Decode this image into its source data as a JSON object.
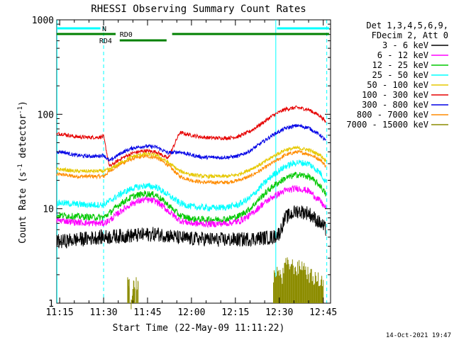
{
  "chart_data": {
    "type": "line",
    "title": "RHESSI Observing Summary Count Rates",
    "xlabel": "Start Time (22-May-09 11:11:22)",
    "ylabel_prefix": "Count Rate (s",
    "ylabel_sup1": "-1",
    "ylabel_mid": " detector",
    "ylabel_sup2": "-1",
    "ylabel_suffix": ")",
    "yscale": "log",
    "ylim": [
      1,
      1000
    ],
    "xlim_min": [
      674.0,
      767.5
    ],
    "x_ticks": [
      {
        "t": 675,
        "label": "11:15"
      },
      {
        "t": 690,
        "label": "11:30"
      },
      {
        "t": 705,
        "label": "11:45"
      },
      {
        "t": 720,
        "label": "12:00"
      },
      {
        "t": 735,
        "label": "12:15"
      },
      {
        "t": 750,
        "label": "12:30"
      },
      {
        "t": 765,
        "label": "12:45"
      }
    ],
    "y_ticks": [
      {
        "v": 1,
        "label": "1"
      },
      {
        "v": 10,
        "label": "10"
      },
      {
        "v": 100,
        "label": "100"
      },
      {
        "v": 1000,
        "label": "1000"
      }
    ],
    "legend_header": [
      "Det 1,3,4,5,6,9,",
      "FDecim 2, Att 0"
    ],
    "series": [
      {
        "name": "3 - 6 keV",
        "color": "#000000",
        "x": [
          674,
          676,
          680,
          684,
          688,
          690,
          694,
          700,
          704,
          708,
          712,
          716,
          720,
          724,
          728,
          732,
          736,
          740,
          744,
          748,
          750,
          752,
          756,
          760,
          764,
          766
        ],
        "y": [
          4.5,
          4.5,
          4.7,
          4.8,
          5.0,
          5.0,
          5.1,
          5.2,
          5.3,
          5.4,
          5.2,
          4.9,
          4.8,
          4.8,
          4.7,
          4.7,
          4.7,
          4.8,
          4.9,
          5.0,
          5.5,
          8.0,
          9.5,
          9.0,
          7.0,
          6.0
        ]
      },
      {
        "name": "6 - 12 keV",
        "color": "#ff00ff",
        "x": [
          674,
          676,
          680,
          684,
          688,
          690,
          692,
          696,
          700,
          704,
          708,
          712,
          716,
          720,
          724,
          728,
          732,
          736,
          740,
          744,
          748,
          752,
          756,
          760,
          764,
          766
        ],
        "y": [
          7.5,
          7.5,
          7.2,
          7.1,
          7.0,
          7.0,
          7.5,
          9.5,
          11.5,
          12.5,
          12.0,
          9.5,
          7.5,
          7.0,
          6.9,
          6.9,
          7.0,
          7.3,
          8.5,
          11.0,
          13.5,
          15.5,
          16.5,
          15.5,
          12.0,
          10.0
        ]
      },
      {
        "name": "12 - 25 keV",
        "color": "#00c800",
        "x": [
          674,
          676,
          680,
          684,
          688,
          690,
          692,
          696,
          700,
          704,
          708,
          712,
          716,
          720,
          724,
          728,
          732,
          736,
          740,
          744,
          748,
          752,
          756,
          760,
          764,
          766
        ],
        "y": [
          8.5,
          8.5,
          8.3,
          8.2,
          8.1,
          8.1,
          9.0,
          11.5,
          13.5,
          14.5,
          14.0,
          11.0,
          8.5,
          7.8,
          7.7,
          7.7,
          7.8,
          8.3,
          10.0,
          13.5,
          17.5,
          21.0,
          23.0,
          22.0,
          17.5,
          14.0
        ]
      },
      {
        "name": "25 - 50 keV",
        "color": "#00ffff",
        "x": [
          674,
          676,
          680,
          684,
          688,
          690,
          692,
          696,
          700,
          704,
          708,
          712,
          716,
          720,
          724,
          728,
          732,
          736,
          740,
          744,
          748,
          752,
          756,
          760,
          764,
          766
        ],
        "y": [
          11.5,
          11.5,
          11.2,
          11.0,
          11.0,
          11.0,
          12.0,
          14.5,
          16.5,
          17.5,
          17.0,
          14.0,
          11.5,
          10.5,
          10.3,
          10.2,
          10.4,
          11.0,
          13.0,
          17.5,
          23.0,
          28.0,
          31.0,
          30.0,
          24.0,
          19.0
        ]
      },
      {
        "name": "50 - 100 keV",
        "color": "#e6c800",
        "x": [
          674,
          676,
          680,
          684,
          688,
          690,
          692,
          696,
          700,
          704,
          708,
          712,
          716,
          720,
          724,
          728,
          732,
          736,
          740,
          744,
          748,
          752,
          756,
          760,
          764,
          766
        ],
        "y": [
          26,
          26,
          25,
          25,
          25,
          25,
          26,
          31,
          36,
          38,
          37,
          31,
          25,
          23,
          22,
          22,
          22,
          23,
          26,
          30,
          36,
          42,
          44,
          42,
          37,
          32
        ]
      },
      {
        "name": "100 - 300 keV",
        "color": "#e60000",
        "x": [
          674,
          676,
          680,
          684,
          688,
          690,
          692,
          696,
          700,
          704,
          708,
          712,
          716,
          720,
          724,
          728,
          732,
          736,
          740,
          744,
          748,
          752,
          756,
          760,
          764,
          766
        ],
        "y": [
          62,
          62,
          58,
          57,
          57,
          58,
          28,
          34,
          39,
          41,
          40,
          34,
          64,
          60,
          57,
          56,
          56,
          58,
          66,
          80,
          98,
          113,
          118,
          112,
          96,
          82
        ]
      },
      {
        "name": "300 - 800 keV",
        "color": "#0000e6",
        "x": [
          674,
          676,
          680,
          684,
          688,
          690,
          692,
          696,
          700,
          704,
          708,
          712,
          716,
          720,
          724,
          728,
          732,
          736,
          740,
          744,
          748,
          752,
          756,
          760,
          764,
          766
        ],
        "y": [
          40,
          40,
          37,
          36,
          36,
          37,
          32,
          39,
          44,
          46,
          45,
          39,
          40,
          37,
          35,
          35,
          35,
          36,
          41,
          50,
          61,
          71,
          76,
          72,
          60,
          52
        ]
      },
      {
        "name": "800 - 7000 keV",
        "color": "#ff8c00",
        "x": [
          674,
          676,
          680,
          684,
          688,
          690,
          692,
          696,
          700,
          704,
          708,
          712,
          716,
          720,
          724,
          728,
          732,
          736,
          740,
          744,
          748,
          752,
          756,
          760,
          764,
          766
        ],
        "y": [
          23,
          23,
          22,
          22,
          22,
          22,
          25,
          30,
          34,
          36,
          35,
          29,
          22,
          20,
          19,
          19,
          19,
          20,
          22,
          26,
          31,
          37,
          40,
          38,
          33,
          28
        ]
      },
      {
        "name": "7000 - 15000 keV",
        "color": "#8c8c00",
        "x": [
          698.5,
          699.5,
          700,
          700.5,
          701.5,
          748,
          749,
          751,
          752,
          754,
          756,
          758,
          760,
          762,
          764
        ],
        "y": [
          1.9,
          1.2,
          1.9,
          1.5,
          1.9,
          1.9,
          2.5,
          2.0,
          2.8,
          2.8,
          2.5,
          2.8,
          2.2,
          2.0,
          1.9
        ]
      }
    ],
    "attenuator_bars": [
      {
        "label": "N",
        "color": "#00ffff",
        "y": 40,
        "segments": [
          [
            674,
            688.9
          ],
          [
            749.2,
            767
          ]
        ],
        "label_at": 689.5
      },
      {
        "label": "RD0",
        "color": "#008000",
        "y": 48,
        "segments": [
          [
            674,
            694.1
          ],
          [
            713.4,
            767
          ]
        ],
        "label_at": 695.5
      },
      {
        "label": "RD4",
        "color": "#008000",
        "y": 57,
        "segments": [
          [
            695.5,
            711.5
          ]
        ],
        "label_at": 688.5
      }
    ],
    "vlines": [
      {
        "t": 674.1,
        "color": "#00ffff",
        "dash": false
      },
      {
        "t": 690.0,
        "color": "#00ffff",
        "dash": true
      },
      {
        "t": 748.8,
        "color": "#00ffff",
        "dash": false
      },
      {
        "t": 766.2,
        "color": "#00ffff",
        "dash": true
      }
    ],
    "grid": false,
    "legend_position": "right"
  },
  "footer_date": "14-Oct-2021 19:47"
}
